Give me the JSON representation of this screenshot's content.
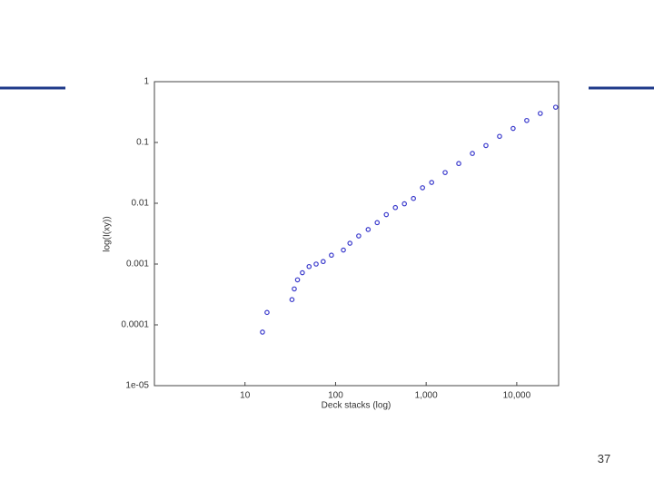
{
  "chart_data": {
    "type": "scatter",
    "x_label": "Deck stacks (log)",
    "y_label": "log(I(xy))",
    "x": [
      15.6,
      17.5,
      33,
      35,
      38,
      43,
      51,
      61,
      73,
      90,
      122,
      144,
      180,
      229,
      288,
      363,
      457,
      575,
      724,
      912,
      1150,
      1620,
      2290,
      3240,
      4570,
      6460,
      9120,
      12900,
      18200,
      26900
    ],
    "series": [
      {
        "name": "log(I(xy))",
        "color": "#3a3acc",
        "values": [
          7.6e-05,
          0.00016,
          0.00026,
          0.00039,
          0.00055,
          0.00072,
          0.00091,
          0.001,
          0.0011,
          0.0014,
          0.0017,
          0.0022,
          0.0029,
          0.0037,
          0.0048,
          0.0065,
          0.0085,
          0.0098,
          0.012,
          0.018,
          0.022,
          0.032,
          0.045,
          0.066,
          0.089,
          0.126,
          0.17,
          0.23,
          0.3,
          0.38
        ]
      }
    ],
    "xlim": [
      1,
      29000
    ],
    "ylim": [
      1e-05,
      1
    ],
    "xticks": [
      10,
      100,
      {
        "value": 1000,
        "label": "1,000"
      },
      {
        "value": 10000,
        "label": "10,000"
      }
    ],
    "yticks": [
      {
        "value": 1e-05,
        "label": "1e-05"
      },
      0.0001,
      0.001,
      0.01,
      0.1,
      1
    ],
    "xlog": true,
    "ylog": true,
    "grid": false
  },
  "slide": {
    "page_number": "37"
  }
}
